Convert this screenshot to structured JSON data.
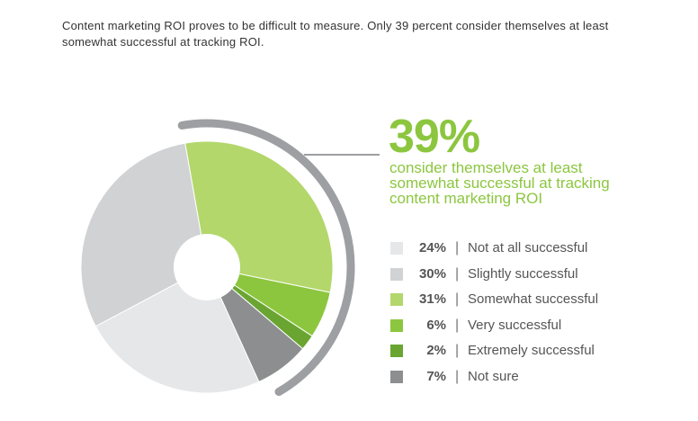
{
  "intro_text": "Content marketing ROI proves to be difficult to measure. Only 39 percent consider themselves at least somewhat successful at tracking ROI.",
  "callout": {
    "big_value": "39%",
    "line1": "consider themselves at least",
    "line2": "somewhat successful at tracking",
    "line3": "content marketing ROI",
    "color": "#8cc63f"
  },
  "chart_data": {
    "type": "pie",
    "donut": true,
    "slices": [
      {
        "label": "Somewhat successful",
        "value": 31,
        "value_label": "31%",
        "color": "#b3d76b"
      },
      {
        "label": "Very successful",
        "value": 6,
        "value_label": "6%",
        "color": "#8cc63f"
      },
      {
        "label": "Extremely successful",
        "value": 2,
        "value_label": "2%",
        "color": "#6aa532"
      },
      {
        "label": "Not sure",
        "value": 7,
        "value_label": "7%",
        "color": "#8c8e90"
      },
      {
        "label": "Not at all successful",
        "value": 24,
        "value_label": "24%",
        "color": "#e6e7e8"
      },
      {
        "label": "Slightly successful",
        "value": 30,
        "value_label": "30%",
        "color": "#d1d2d4"
      }
    ],
    "legend": [
      {
        "value_label": "24%",
        "label": "Not at all successful",
        "color": "#e6e7e8"
      },
      {
        "value_label": "30%",
        "label": "Slightly successful",
        "color": "#d1d2d4"
      },
      {
        "value_label": "31%",
        "label": "Somewhat successful",
        "color": "#b3d76b"
      },
      {
        "value_label": "6%",
        "label": "Very successful",
        "color": "#8cc63f"
      },
      {
        "value_label": "2%",
        "label": "Extremely successful",
        "color": "#6aa532"
      },
      {
        "value_label": "7%",
        "label": "Not sure",
        "color": "#8c8e90"
      }
    ],
    "highlight_arc_color": "#9d9fa2",
    "legend_position": "right"
  }
}
